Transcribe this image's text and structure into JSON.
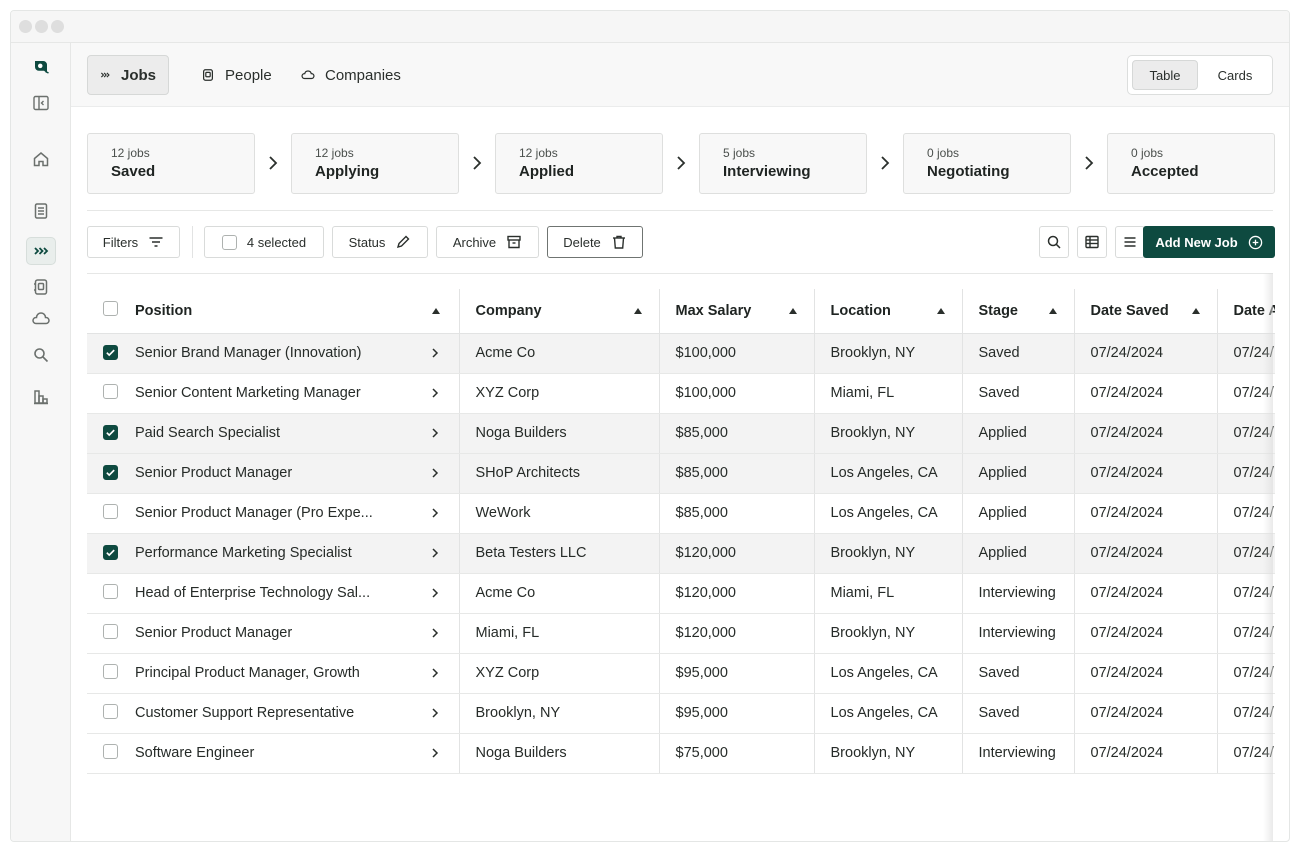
{
  "nav": {
    "tabs": [
      {
        "label": "Jobs",
        "icon": "chevrons-right-icon",
        "active": true
      },
      {
        "label": "People",
        "icon": "contact-book-icon",
        "active": false
      },
      {
        "label": "Companies",
        "icon": "cloud-icon",
        "active": false
      }
    ],
    "view_options": [
      "Table",
      "Cards"
    ],
    "active_view": "Table"
  },
  "sidebar": {
    "icons": [
      "logo-icon",
      "panel-toggle-icon",
      "home-icon",
      "document-icon",
      "jobs-icon",
      "contacts-icon",
      "companies-icon",
      "search-icon",
      "analytics-icon"
    ]
  },
  "pipeline": [
    {
      "count": "12 jobs",
      "stage": "Saved"
    },
    {
      "count": "12 jobs",
      "stage": "Applying"
    },
    {
      "count": "12 jobs",
      "stage": "Applied"
    },
    {
      "count": "5 jobs",
      "stage": "Interviewing"
    },
    {
      "count": "0 jobs",
      "stage": "Negotiating"
    },
    {
      "count": "0 jobs",
      "stage": "Accepted"
    }
  ],
  "toolbar": {
    "filters_label": "Filters",
    "selected_label": "4 selected",
    "status_label": "Status",
    "archive_label": "Archive",
    "delete_label": "Delete",
    "add_label": "Add New Job"
  },
  "table": {
    "columns": [
      "Position",
      "Company",
      "Max Salary",
      "Location",
      "Stage",
      "Date Saved",
      "Date A"
    ],
    "rows": [
      {
        "checked": true,
        "position": "Senior Brand Manager (Innovation)",
        "company": "Acme Co",
        "salary": "$100,000",
        "location": "Brooklyn, NY",
        "stage": "Saved",
        "date_saved": "07/24/2024",
        "date_applied": "07/24/"
      },
      {
        "checked": false,
        "position": "Senior Content Marketing Manager",
        "company": "XYZ Corp",
        "salary": "$100,000",
        "location": "Miami, FL",
        "stage": "Saved",
        "date_saved": "07/24/2024",
        "date_applied": "07/24/"
      },
      {
        "checked": true,
        "position": "Paid Search Specialist",
        "company": "Noga Builders",
        "salary": "$85,000",
        "location": "Brooklyn, NY",
        "stage": "Applied",
        "date_saved": "07/24/2024",
        "date_applied": "07/24/"
      },
      {
        "checked": true,
        "position": "Senior Product Manager",
        "company": "SHoP Architects",
        "salary": "$85,000",
        "location": "Los Angeles, CA",
        "stage": "Applied",
        "date_saved": "07/24/2024",
        "date_applied": "07/24/"
      },
      {
        "checked": false,
        "position": "Senior Product Manager (Pro Expe...",
        "company": "WeWork",
        "salary": "$85,000",
        "location": "Los Angeles, CA",
        "stage": "Applied",
        "date_saved": "07/24/2024",
        "date_applied": "07/24/"
      },
      {
        "checked": true,
        "position": "Performance Marketing Specialist",
        "company": "Beta Testers LLC",
        "salary": "$120,000",
        "location": "Brooklyn, NY",
        "stage": "Applied",
        "date_saved": "07/24/2024",
        "date_applied": "07/24/"
      },
      {
        "checked": false,
        "position": "Head of Enterprise Technology Sal...",
        "company": "Acme Co",
        "salary": "$120,000",
        "location": "Miami, FL",
        "stage": "Interviewing",
        "date_saved": "07/24/2024",
        "date_applied": "07/24/"
      },
      {
        "checked": false,
        "position": "Senior Product Manager",
        "company": "Miami, FL",
        "salary": "$120,000",
        "location": "Brooklyn, NY",
        "stage": "Interviewing",
        "date_saved": "07/24/2024",
        "date_applied": "07/24/"
      },
      {
        "checked": false,
        "position": "Principal Product Manager, Growth",
        "company": "XYZ Corp",
        "salary": "$95,000",
        "location": "Los Angeles, CA",
        "stage": "Saved",
        "date_saved": "07/24/2024",
        "date_applied": "07/24/"
      },
      {
        "checked": false,
        "position": "Customer Support Representative",
        "company": "Brooklyn, NY",
        "salary": "$95,000",
        "location": "Los Angeles, CA",
        "stage": "Saved",
        "date_saved": "07/24/2024",
        "date_applied": "07/24/"
      },
      {
        "checked": false,
        "position": "Software Engineer",
        "company": "Noga Builders",
        "salary": "$75,000",
        "location": "Brooklyn, NY",
        "stage": "Interviewing",
        "date_saved": "07/24/2024",
        "date_applied": "07/24/"
      }
    ]
  }
}
